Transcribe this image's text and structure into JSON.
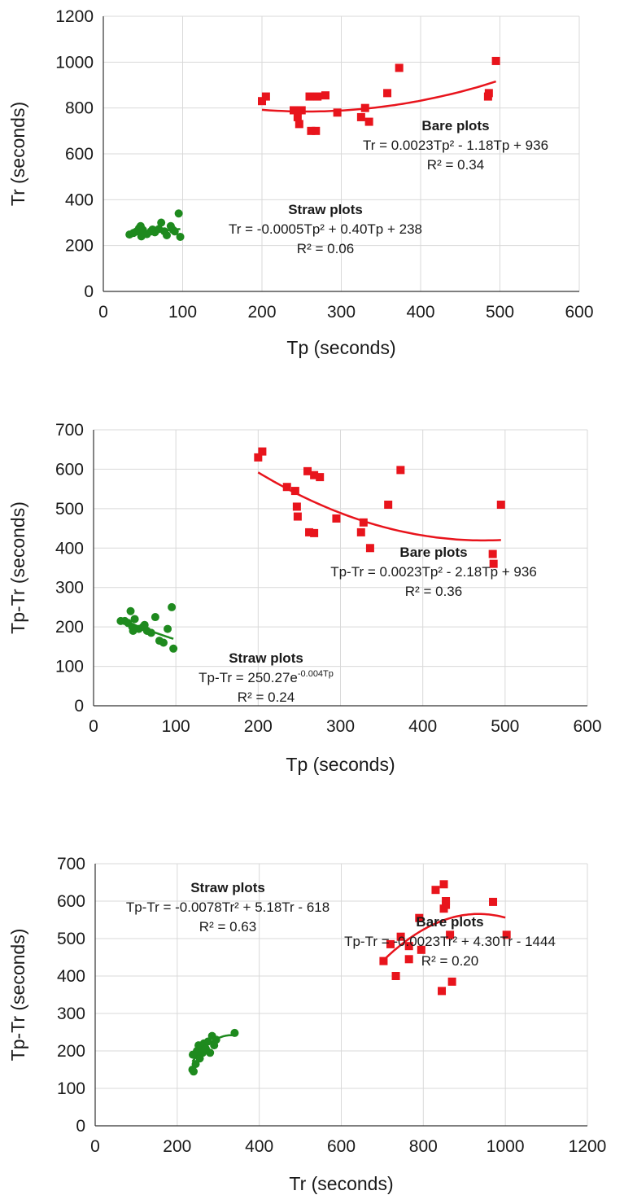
{
  "chart_data": [
    {
      "type": "scatter",
      "xlabel": "Tp (seconds)",
      "ylabel": "Tr (seconds)",
      "xlim": [
        0,
        600
      ],
      "ylim": [
        0,
        1200
      ],
      "xticks": [
        0,
        100,
        200,
        300,
        400,
        500,
        600
      ],
      "yticks": [
        0,
        200,
        400,
        600,
        800,
        1000,
        1200
      ],
      "grid": true,
      "series": [
        {
          "name": "Bare plots",
          "color": "#e8141c",
          "marker": "square",
          "points": [
            [
              200,
              830
            ],
            [
              205,
              850
            ],
            [
              240,
              790
            ],
            [
              245,
              760
            ],
            [
              247,
              730
            ],
            [
              250,
              790
            ],
            [
              260,
              850
            ],
            [
              262,
              700
            ],
            [
              268,
              700
            ],
            [
              270,
              850
            ],
            [
              280,
              855
            ],
            [
              295,
              780
            ],
            [
              325,
              760
            ],
            [
              330,
              800
            ],
            [
              335,
              740
            ],
            [
              358,
              865
            ],
            [
              373,
              975
            ],
            [
              485,
              850
            ],
            [
              486,
              865
            ],
            [
              495,
              1005
            ]
          ],
          "fit": {
            "a": 0.0023,
            "b": -1.18,
            "c": 936,
            "x_range": [
              200,
              495
            ]
          },
          "annotation": {
            "title": "Bare plots",
            "equation": "Tr = 0.0023Tp² - 1.18Tp + 936",
            "r2": "R² = 0.34"
          }
        },
        {
          "name": "Straw plots",
          "color": "#1e8a1e",
          "marker": "circle",
          "points": [
            [
              33,
              248
            ],
            [
              38,
              255
            ],
            [
              42,
              262
            ],
            [
              45,
              275
            ],
            [
              48,
              240
            ],
            [
              50,
              268
            ],
            [
              55,
              250
            ],
            [
              60,
              262
            ],
            [
              65,
              258
            ],
            [
              70,
              272
            ],
            [
              73,
              300
            ],
            [
              77,
              262
            ],
            [
              80,
              245
            ],
            [
              85,
              285
            ],
            [
              88,
              268
            ],
            [
              90,
              262
            ],
            [
              95,
              340
            ],
            [
              97,
              238
            ],
            [
              47,
              285
            ],
            [
              62,
              270
            ]
          ],
          "fit": {
            "a": -0.0005,
            "b": 0.4,
            "c": 238,
            "x_range": [
              33,
              97
            ]
          },
          "annotation": {
            "title": "Straw plots",
            "equation": "Tr = -0.0005Tp² + 0.40Tp + 238",
            "r2": "R² = 0.06"
          }
        }
      ]
    },
    {
      "type": "scatter",
      "xlabel": "Tp (seconds)",
      "ylabel": "Tp-Tr (seconds)",
      "xlim": [
        0,
        600
      ],
      "ylim": [
        0,
        700
      ],
      "xticks": [
        0,
        100,
        200,
        300,
        400,
        500,
        600
      ],
      "yticks": [
        0,
        100,
        200,
        300,
        400,
        500,
        600,
        700
      ],
      "grid": true,
      "series": [
        {
          "name": "Bare plots",
          "color": "#e8141c",
          "marker": "square",
          "points": [
            [
              200,
              630
            ],
            [
              205,
              645
            ],
            [
              235,
              555
            ],
            [
              245,
              545
            ],
            [
              247,
              505
            ],
            [
              248,
              480
            ],
            [
              260,
              595
            ],
            [
              262,
              440
            ],
            [
              268,
              438
            ],
            [
              268,
              585
            ],
            [
              275,
              580
            ],
            [
              295,
              475
            ],
            [
              325,
              440
            ],
            [
              328,
              465
            ],
            [
              336,
              400
            ],
            [
              358,
              510
            ],
            [
              373,
              598
            ],
            [
              485,
              385
            ],
            [
              486,
              360
            ],
            [
              495,
              510
            ]
          ],
          "fit": {
            "a": 0.0023,
            "b": -2.18,
            "c": 936,
            "x_range": [
              200,
              495
            ]
          },
          "annotation": {
            "title": "Bare plots",
            "equation": "Tp-Tr = 0.0023Tp² - 2.18Tp + 936",
            "r2": "R² = 0.36"
          }
        },
        {
          "name": "Straw plots",
          "color": "#1e8a1e",
          "marker": "circle",
          "points": [
            [
              33,
              215
            ],
            [
              38,
              215
            ],
            [
              42,
              210
            ],
            [
              45,
              240
            ],
            [
              48,
              190
            ],
            [
              50,
              220
            ],
            [
              55,
              195
            ],
            [
              60,
              200
            ],
            [
              65,
              190
            ],
            [
              70,
              185
            ],
            [
              75,
              225
            ],
            [
              80,
              165
            ],
            [
              85,
              160
            ],
            [
              90,
              195
            ],
            [
              95,
              250
            ],
            [
              97,
              145
            ],
            [
              47,
              200
            ],
            [
              62,
              205
            ]
          ],
          "fit": {
            "type": "exponential",
            "a": 250.27,
            "b": -0.004,
            "x_range": [
              33,
              97
            ]
          },
          "annotation": {
            "title": "Straw plots",
            "equation": "Tp-Tr = 250.27e",
            "equation_sup": "-0.004Tp",
            "r2": "R² = 0.24"
          }
        }
      ]
    },
    {
      "type": "scatter",
      "xlabel": "Tr (seconds)",
      "ylabel": "Tp-Tr (seconds)",
      "xlim": [
        0,
        1200
      ],
      "ylim": [
        0,
        700
      ],
      "xticks": [
        0,
        200,
        400,
        600,
        800,
        1000,
        1200
      ],
      "yticks": [
        0,
        100,
        200,
        300,
        400,
        500,
        600,
        700
      ],
      "grid": true,
      "series": [
        {
          "name": "Bare plots",
          "color": "#e8141c",
          "marker": "square",
          "points": [
            [
              703,
              440
            ],
            [
              720,
              485
            ],
            [
              733,
              400
            ],
            [
              745,
              505
            ],
            [
              765,
              445
            ],
            [
              765,
              480
            ],
            [
              790,
              555
            ],
            [
              795,
              470
            ],
            [
              830,
              630
            ],
            [
              845,
              360
            ],
            [
              850,
              645
            ],
            [
              850,
              580
            ],
            [
              855,
              590
            ],
            [
              855,
              600
            ],
            [
              865,
              510
            ],
            [
              870,
              385
            ],
            [
              970,
              598
            ],
            [
              1003,
              510
            ]
          ],
          "fit": {
            "a": -0.0023,
            "b": 4.3,
            "c": -1444,
            "x_range": [
              700,
              1000
            ]
          },
          "annotation": {
            "title": "Bare plots",
            "equation": "Tp-Tr = -0.0023Tr² + 4.30Tr - 1444",
            "r2": "R² = 0.20"
          }
        },
        {
          "name": "Straw plots",
          "color": "#1e8a1e",
          "marker": "circle",
          "points": [
            [
              237,
              150
            ],
            [
              238,
              190
            ],
            [
              240,
              145
            ],
            [
              245,
              165
            ],
            [
              248,
              200
            ],
            [
              252,
              215
            ],
            [
              255,
              180
            ],
            [
              258,
              210
            ],
            [
              262,
              195
            ],
            [
              265,
              220
            ],
            [
              270,
              205
            ],
            [
              275,
              225
            ],
            [
              280,
              195
            ],
            [
              285,
              240
            ],
            [
              290,
              215
            ],
            [
              295,
              230
            ],
            [
              340,
              248
            ]
          ],
          "fit": {
            "a": -0.0078,
            "b": 5.18,
            "c": -618,
            "x_range": [
              237,
              340
            ]
          },
          "annotation": {
            "title": "Straw plots",
            "equation": "Tp-Tr = -0.0078Tr² + 5.18Tr - 618",
            "r2": "R² = 0.63"
          }
        }
      ]
    }
  ]
}
